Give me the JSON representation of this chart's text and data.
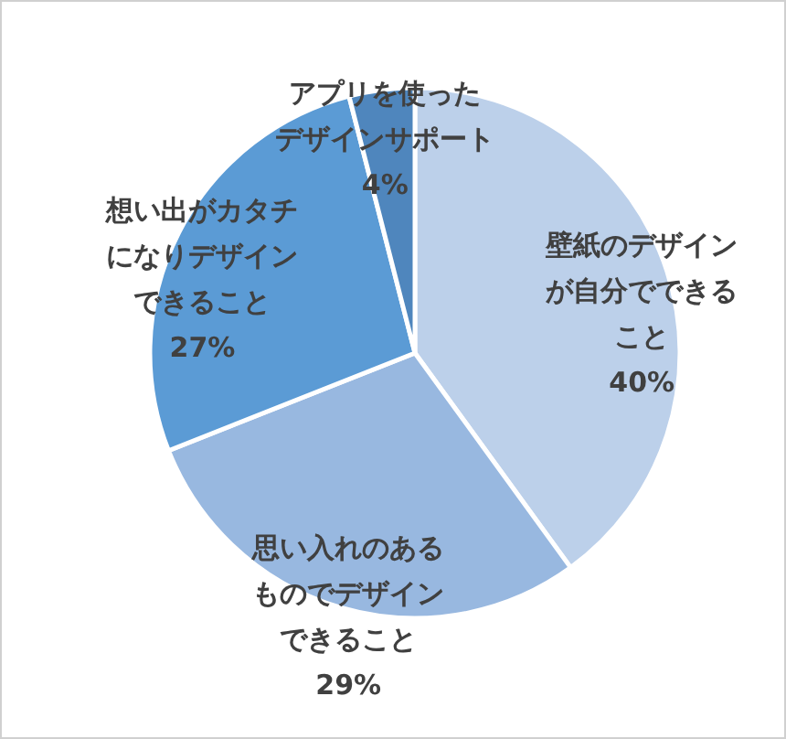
{
  "chart_data": {
    "type": "pie",
    "categories": [
      "壁紙のデザインが自分でできること",
      "思い入れのあるものでデザインできること",
      "想い出がカタチになりデザインできること",
      "アプリを使ったデザインサポート"
    ],
    "values": [
      40,
      29,
      27,
      4
    ],
    "colors": [
      "#bcd0ea",
      "#98b8e0",
      "#5b9bd5",
      "#4f86bd"
    ],
    "value_labels": [
      "40%",
      "29%",
      "27%",
      "4%"
    ]
  }
}
